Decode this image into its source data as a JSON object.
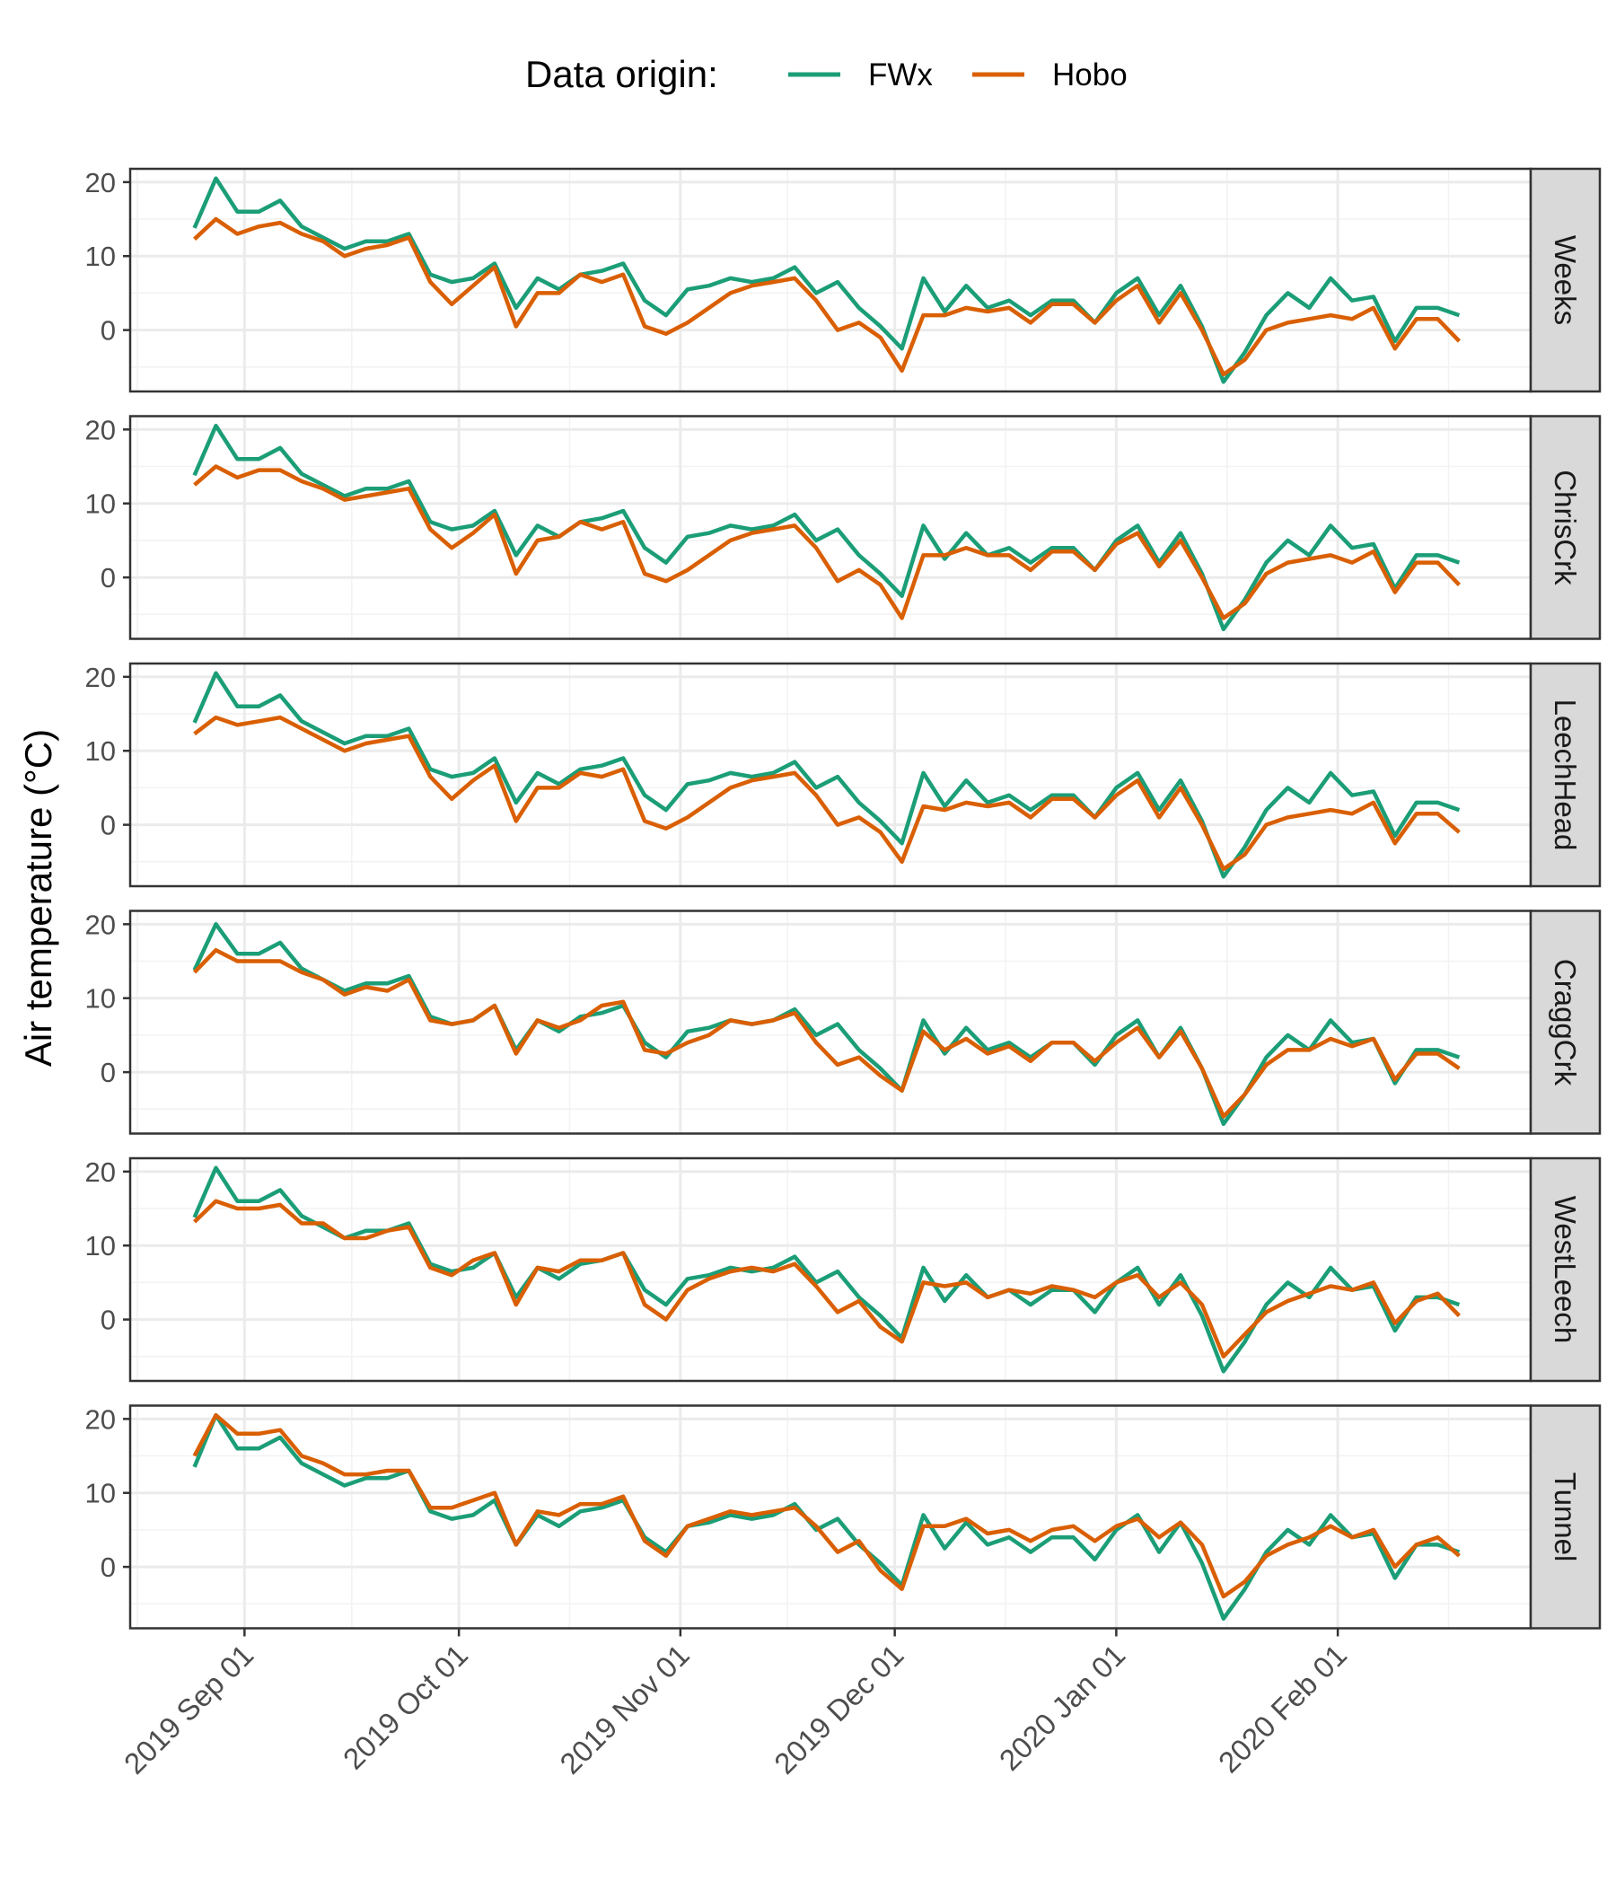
{
  "legend": {
    "title": "Data origin:",
    "entries": [
      {
        "label": "FWx",
        "color": "#1b9e77"
      },
      {
        "label": "Hobo",
        "color": "#d95f02"
      }
    ]
  },
  "chart_data": {
    "type": "line",
    "facet_direction": "vertical",
    "ylabel": "Air temperature (°C)",
    "xlabel": "",
    "x_ticks": [
      "2019 Sep 01",
      "2019 Oct 01",
      "2019 Nov 01",
      "2019 Dec 01",
      "2020 Jan 01",
      "2020 Feb 01"
    ],
    "x_tick_dates": [
      "2019-09-01",
      "2019-10-01",
      "2019-11-01",
      "2019-12-01",
      "2020-01-01",
      "2020-02-01"
    ],
    "xlim": [
      "2019-08-16",
      "2020-02-28"
    ],
    "y_ticks": [
      0,
      10,
      20
    ],
    "ylim": [
      -8.3,
      21.8
    ],
    "grid": true,
    "legend_position": "top",
    "x_dates": [
      "2019-08-25",
      "2019-08-28",
      "2019-08-31",
      "2019-09-03",
      "2019-09-06",
      "2019-09-09",
      "2019-09-12",
      "2019-09-15",
      "2019-09-18",
      "2019-09-21",
      "2019-09-24",
      "2019-09-27",
      "2019-09-30",
      "2019-10-03",
      "2019-10-06",
      "2019-10-09",
      "2019-10-12",
      "2019-10-15",
      "2019-10-18",
      "2019-10-21",
      "2019-10-24",
      "2019-10-27",
      "2019-10-30",
      "2019-11-02",
      "2019-11-05",
      "2019-11-08",
      "2019-11-11",
      "2019-11-14",
      "2019-11-17",
      "2019-11-20",
      "2019-11-23",
      "2019-11-26",
      "2019-11-29",
      "2019-12-02",
      "2019-12-05",
      "2019-12-08",
      "2019-12-11",
      "2019-12-14",
      "2019-12-17",
      "2019-12-20",
      "2019-12-23",
      "2019-12-26",
      "2019-12-29",
      "2020-01-01",
      "2020-01-04",
      "2020-01-07",
      "2020-01-10",
      "2020-01-13",
      "2020-01-16",
      "2020-01-19",
      "2020-01-22",
      "2020-01-25",
      "2020-01-28",
      "2020-01-31",
      "2020-02-03",
      "2020-02-06",
      "2020-02-09",
      "2020-02-12",
      "2020-02-15",
      "2020-02-18"
    ],
    "panels": [
      {
        "label": "Weeks",
        "series": [
          {
            "name": "FWx",
            "values": [
              13.8,
              20.5,
              16.0,
              16.0,
              17.5,
              14.0,
              12.5,
              11.0,
              12.0,
              12.0,
              13.0,
              7.5,
              6.5,
              7.0,
              9.0,
              3.0,
              7.0,
              5.5,
              7.5,
              8.0,
              9.0,
              4.0,
              2.0,
              5.5,
              6.0,
              7.0,
              6.5,
              7.0,
              8.5,
              5.0,
              6.5,
              3.0,
              0.5,
              -2.5,
              7.0,
              2.5,
              6.0,
              3.0,
              4.0,
              2.0,
              4.0,
              4.0,
              1.0,
              5.0,
              7.0,
              2.0,
              6.0,
              0.5,
              -7.0,
              -3.0,
              2.0,
              5.0,
              3.0,
              7.0,
              4.0,
              4.5,
              -1.5,
              3.0,
              3.0,
              2.0
            ]
          },
          {
            "name": "Hobo",
            "values": [
              12.3,
              15.0,
              13.0,
              14.0,
              14.5,
              13.0,
              12.0,
              10.0,
              11.0,
              11.5,
              12.5,
              6.5,
              3.5,
              6.0,
              8.5,
              0.5,
              5.0,
              5.0,
              7.5,
              6.5,
              7.5,
              0.5,
              -0.5,
              1.0,
              3.0,
              5.0,
              6.0,
              6.5,
              7.0,
              4.0,
              0.0,
              1.0,
              -1.0,
              -5.5,
              2.0,
              2.0,
              3.0,
              2.5,
              3.0,
              1.0,
              3.5,
              3.5,
              1.0,
              4.0,
              6.0,
              1.0,
              5.0,
              0.0,
              -6.0,
              -4.0,
              0.0,
              1.0,
              1.5,
              2.0,
              1.5,
              3.0,
              -2.5,
              1.5,
              1.5,
              -1.5
            ]
          }
        ]
      },
      {
        "label": "ChrisCrk",
        "series": [
          {
            "name": "FWx",
            "values": [
              13.8,
              20.5,
              16.0,
              16.0,
              17.5,
              14.0,
              12.5,
              11.0,
              12.0,
              12.0,
              13.0,
              7.5,
              6.5,
              7.0,
              9.0,
              3.0,
              7.0,
              5.5,
              7.5,
              8.0,
              9.0,
              4.0,
              2.0,
              5.5,
              6.0,
              7.0,
              6.5,
              7.0,
              8.5,
              5.0,
              6.5,
              3.0,
              0.5,
              -2.5,
              7.0,
              2.5,
              6.0,
              3.0,
              4.0,
              2.0,
              4.0,
              4.0,
              1.0,
              5.0,
              7.0,
              2.0,
              6.0,
              0.5,
              -7.0,
              -3.0,
              2.0,
              5.0,
              3.0,
              7.0,
              4.0,
              4.5,
              -1.5,
              3.0,
              3.0,
              2.0
            ]
          },
          {
            "name": "Hobo",
            "values": [
              12.5,
              15.0,
              13.5,
              14.5,
              14.5,
              13.0,
              12.0,
              10.5,
              11.0,
              11.5,
              12.0,
              6.5,
              4.0,
              6.0,
              8.5,
              0.5,
              5.0,
              5.5,
              7.5,
              6.5,
              7.5,
              0.5,
              -0.5,
              1.0,
              3.0,
              5.0,
              6.0,
              6.5,
              7.0,
              4.0,
              -0.5,
              1.0,
              -1.0,
              -5.5,
              3.0,
              3.0,
              4.0,
              3.0,
              3.0,
              1.0,
              3.5,
              3.5,
              1.0,
              4.5,
              6.0,
              1.5,
              5.0,
              0.0,
              -5.5,
              -3.5,
              0.5,
              2.0,
              2.5,
              3.0,
              2.0,
              3.5,
              -2.0,
              2.0,
              2.0,
              -1.0
            ]
          }
        ]
      },
      {
        "label": "LeechHead",
        "series": [
          {
            "name": "FWx",
            "values": [
              13.8,
              20.5,
              16.0,
              16.0,
              17.5,
              14.0,
              12.5,
              11.0,
              12.0,
              12.0,
              13.0,
              7.5,
              6.5,
              7.0,
              9.0,
              3.0,
              7.0,
              5.5,
              7.5,
              8.0,
              9.0,
              4.0,
              2.0,
              5.5,
              6.0,
              7.0,
              6.5,
              7.0,
              8.5,
              5.0,
              6.5,
              3.0,
              0.5,
              -2.5,
              7.0,
              2.5,
              6.0,
              3.0,
              4.0,
              2.0,
              4.0,
              4.0,
              1.0,
              5.0,
              7.0,
              2.0,
              6.0,
              0.5,
              -7.0,
              -3.0,
              2.0,
              5.0,
              3.0,
              7.0,
              4.0,
              4.5,
              -1.5,
              3.0,
              3.0,
              2.0
            ]
          },
          {
            "name": "Hobo",
            "values": [
              12.3,
              14.5,
              13.5,
              14.0,
              14.5,
              13.0,
              11.5,
              10.0,
              11.0,
              11.5,
              12.0,
              6.5,
              3.5,
              6.0,
              8.0,
              0.5,
              5.0,
              5.0,
              7.0,
              6.5,
              7.5,
              0.5,
              -0.5,
              1.0,
              3.0,
              5.0,
              6.0,
              6.5,
              7.0,
              4.0,
              0.0,
              1.0,
              -1.0,
              -5.0,
              2.5,
              2.0,
              3.0,
              2.5,
              3.0,
              1.0,
              3.5,
              3.5,
              1.0,
              4.0,
              6.0,
              1.0,
              5.0,
              0.0,
              -6.0,
              -4.0,
              0.0,
              1.0,
              1.5,
              2.0,
              1.5,
              3.0,
              -2.5,
              1.5,
              1.5,
              -1.0
            ]
          }
        ]
      },
      {
        "label": "CraggCrk",
        "series": [
          {
            "name": "FWx",
            "values": [
              13.8,
              20.0,
              16.0,
              16.0,
              17.5,
              14.0,
              12.5,
              11.0,
              12.0,
              12.0,
              13.0,
              7.5,
              6.5,
              7.0,
              9.0,
              3.0,
              7.0,
              5.5,
              7.5,
              8.0,
              9.0,
              4.0,
              2.0,
              5.5,
              6.0,
              7.0,
              6.5,
              7.0,
              8.5,
              5.0,
              6.5,
              3.0,
              0.5,
              -2.5,
              7.0,
              2.5,
              6.0,
              3.0,
              4.0,
              2.0,
              4.0,
              4.0,
              1.0,
              5.0,
              7.0,
              2.0,
              6.0,
              0.5,
              -7.0,
              -3.0,
              2.0,
              5.0,
              3.0,
              7.0,
              4.0,
              4.5,
              -1.5,
              3.0,
              3.0,
              2.0
            ]
          },
          {
            "name": "Hobo",
            "values": [
              13.5,
              16.5,
              15.0,
              15.0,
              15.0,
              13.5,
              12.5,
              10.5,
              11.5,
              11.0,
              12.5,
              7.0,
              6.5,
              7.0,
              9.0,
              2.5,
              7.0,
              6.0,
              7.0,
              9.0,
              9.5,
              3.0,
              2.5,
              4.0,
              5.0,
              7.0,
              6.5,
              7.0,
              8.0,
              4.0,
              1.0,
              2.0,
              -0.5,
              -2.5,
              5.5,
              3.0,
              4.5,
              2.5,
              3.5,
              1.5,
              4.0,
              4.0,
              1.5,
              4.0,
              6.0,
              2.0,
              5.5,
              0.5,
              -6.0,
              -3.0,
              1.0,
              3.0,
              3.0,
              4.5,
              3.5,
              4.5,
              -1.0,
              2.5,
              2.5,
              0.5
            ]
          }
        ]
      },
      {
        "label": "WestLeech",
        "series": [
          {
            "name": "FWx",
            "values": [
              13.8,
              20.5,
              16.0,
              16.0,
              17.5,
              14.0,
              12.5,
              11.0,
              12.0,
              12.0,
              13.0,
              7.5,
              6.5,
              7.0,
              9.0,
              3.0,
              7.0,
              5.5,
              7.5,
              8.0,
              9.0,
              4.0,
              2.0,
              5.5,
              6.0,
              7.0,
              6.5,
              7.0,
              8.5,
              5.0,
              6.5,
              3.0,
              0.5,
              -2.5,
              7.0,
              2.5,
              6.0,
              3.0,
              4.0,
              2.0,
              4.0,
              4.0,
              1.0,
              5.0,
              7.0,
              2.0,
              6.0,
              0.5,
              -7.0,
              -3.0,
              2.0,
              5.0,
              3.0,
              7.0,
              4.0,
              4.5,
              -1.5,
              3.0,
              3.0,
              2.0
            ]
          },
          {
            "name": "Hobo",
            "values": [
              13.2,
              16.0,
              15.0,
              15.0,
              15.5,
              13.0,
              13.0,
              11.0,
              11.0,
              12.0,
              12.5,
              7.0,
              6.0,
              8.0,
              9.0,
              2.0,
              7.0,
              6.5,
              8.0,
              8.0,
              9.0,
              2.0,
              0.0,
              4.0,
              5.5,
              6.5,
              7.0,
              6.5,
              7.5,
              4.5,
              1.0,
              2.5,
              -1.0,
              -3.0,
              5.0,
              4.5,
              5.0,
              3.0,
              4.0,
              3.5,
              4.5,
              4.0,
              3.0,
              5.0,
              6.0,
              3.0,
              5.0,
              2.0,
              -5.0,
              -2.0,
              1.0,
              2.5,
              3.5,
              4.5,
              4.0,
              5.0,
              -0.5,
              2.5,
              3.5,
              0.5
            ]
          }
        ]
      },
      {
        "label": "Tunnel",
        "series": [
          {
            "name": "FWx",
            "values": [
              13.5,
              20.5,
              16.0,
              16.0,
              17.5,
              14.0,
              12.5,
              11.0,
              12.0,
              12.0,
              13.0,
              7.5,
              6.5,
              7.0,
              9.0,
              3.0,
              7.0,
              5.5,
              7.5,
              8.0,
              9.0,
              4.0,
              2.0,
              5.5,
              6.0,
              7.0,
              6.5,
              7.0,
              8.5,
              5.0,
              6.5,
              3.0,
              0.5,
              -2.5,
              7.0,
              2.5,
              6.0,
              3.0,
              4.0,
              2.0,
              4.0,
              4.0,
              1.0,
              5.0,
              7.0,
              2.0,
              6.0,
              0.5,
              -7.0,
              -3.0,
              2.0,
              5.0,
              3.0,
              7.0,
              4.0,
              4.5,
              -1.5,
              3.0,
              3.0,
              2.0
            ]
          },
          {
            "name": "Hobo",
            "values": [
              15.0,
              20.5,
              18.0,
              18.0,
              18.5,
              15.0,
              14.0,
              12.5,
              12.5,
              13.0,
              13.0,
              8.0,
              8.0,
              9.0,
              10.0,
              3.0,
              7.5,
              7.0,
              8.5,
              8.5,
              9.5,
              3.5,
              1.5,
              5.5,
              6.5,
              7.5,
              7.0,
              7.5,
              8.0,
              5.5,
              2.0,
              3.5,
              -0.5,
              -3.0,
              5.5,
              5.5,
              6.5,
              4.5,
              5.0,
              3.5,
              5.0,
              5.5,
              3.5,
              5.5,
              6.5,
              4.0,
              6.0,
              3.0,
              -4.0,
              -2.0,
              1.5,
              3.0,
              4.0,
              5.5,
              4.0,
              5.0,
              0.0,
              3.0,
              4.0,
              1.5
            ]
          }
        ]
      }
    ]
  }
}
